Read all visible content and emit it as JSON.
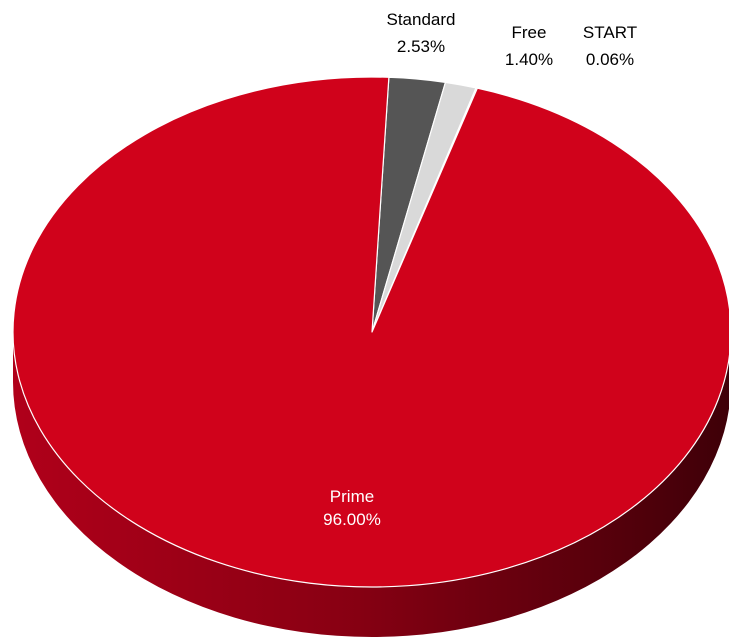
{
  "chart_data": {
    "type": "pie",
    "style": "3d",
    "title": "",
    "slices": [
      {
        "name": "Prime",
        "value": 96.0,
        "label": "96.00%",
        "color": "#d0021b",
        "label_color": "#ffffff"
      },
      {
        "name": "Standard",
        "value": 2.53,
        "label": "2.53%",
        "color": "#555555",
        "label_color": "#000000"
      },
      {
        "name": "Free",
        "value": 1.4,
        "label": "1.40%",
        "color": "#d9d9d9",
        "label_color": "#000000"
      },
      {
        "name": "START",
        "value": 0.06,
        "label": "0.06%",
        "color": "#bfbfbf",
        "label_color": "#000000"
      }
    ]
  }
}
